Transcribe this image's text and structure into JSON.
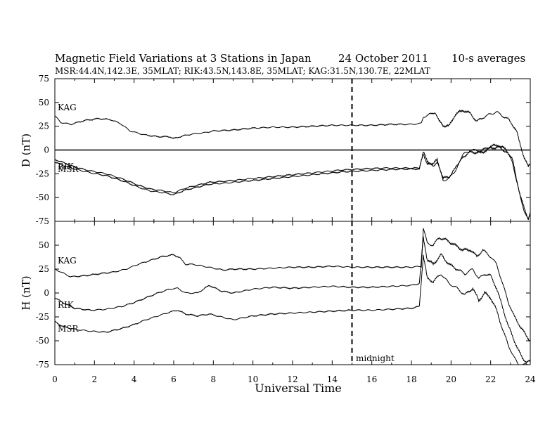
{
  "chart_data": {
    "type": "line",
    "title": "Magnetic Field Variations at 3 Stations in Japan",
    "date": "24 October 2011",
    "averaging": "10-s averages",
    "stations_line": "MSR:44.4N,142.3E, 35MLAT;   RIK:43.5N,143.8E, 35MLAT;   KAG:31.5N,130.7E, 22MLAT",
    "xlabel": "Universal Time",
    "xlim": [
      0,
      24
    ],
    "xticks": [
      0,
      2,
      4,
      6,
      8,
      10,
      12,
      14,
      16,
      18,
      20,
      22,
      24
    ],
    "annotation": {
      "x": 15,
      "label": "midnight",
      "style": "dashed vertical line"
    },
    "panels": [
      {
        "ylabel": "D (nT)",
        "ylim": [
          -75,
          75
        ],
        "yticks": [
          -75,
          -50,
          -25,
          0,
          25,
          50,
          75
        ],
        "zero_line": true,
        "series": [
          {
            "name": "KAG",
            "x": [
              0,
              0.3,
              0.8,
              1.5,
              2.2,
              2.8,
              3.3,
              3.8,
              4.5,
              5.2,
              5.8,
              6.0,
              6.5,
              7.0,
              7.5,
              8.0,
              9.0,
              10.0,
              11.0,
              12.0,
              13.0,
              14.0,
              15.0,
              16.0,
              17.0,
              18.0,
              18.5,
              18.6,
              18.9,
              19.2,
              19.4,
              19.6,
              19.9,
              20.2,
              20.6,
              21.0,
              21.3,
              21.6,
              22.0,
              22.3,
              22.6,
              22.9,
              23.1,
              23.3,
              23.5,
              23.7,
              23.9,
              24.0
            ],
            "y": [
              36,
              29,
              27,
              31,
              33,
              32,
              28,
              20,
              16,
              14,
              14,
              12,
              15,
              17,
              18,
              20,
              21,
              23,
              24,
              24,
              25,
              26,
              26,
              26,
              27,
              27,
              28,
              35,
              37,
              40,
              30,
              26,
              25,
              37,
              42,
              38,
              30,
              34,
              38,
              40,
              36,
              32,
              27,
              20,
              5,
              -8,
              -18,
              -14
            ]
          },
          {
            "name": "RIK",
            "x": [
              0,
              0.4,
              1.0,
              1.8,
              2.6,
              3.5,
              4.2,
              4.8,
              5.5,
              6.0,
              6.6,
              7.2,
              7.8,
              8.5,
              9.5,
              10.5,
              11.5,
              12.5,
              13.5,
              14.5,
              15.5,
              16.5,
              17.5,
              18.4,
              18.6,
              18.8,
              19.1,
              19.3,
              19.6,
              19.9,
              20.2,
              20.6,
              21.0,
              21.5,
              22.0,
              22.4,
              22.8,
              23.1,
              23.3,
              23.5,
              23.7,
              23.9,
              24.0
            ],
            "y": [
              -10,
              -13,
              -18,
              -22,
              -25,
              -31,
              -37,
              -41,
              -43,
              -45,
              -40,
              -37,
              -34,
              -33,
              -31,
              -29,
              -27,
              -25,
              -23,
              -21,
              -20,
              -19,
              -19,
              -19,
              -2,
              -12,
              -15,
              -10,
              -30,
              -28,
              -20,
              -5,
              0,
              -1,
              4,
              5,
              0,
              -10,
              -30,
              -48,
              -62,
              -72,
              -65
            ]
          },
          {
            "name": "MSR",
            "x": [
              0,
              0.4,
              1.0,
              1.8,
              2.6,
              3.5,
              4.2,
              4.8,
              5.5,
              6.0,
              6.6,
              7.2,
              7.8,
              8.5,
              9.5,
              10.5,
              11.5,
              12.5,
              13.5,
              14.5,
              15.5,
              16.5,
              17.5,
              18.4,
              18.6,
              18.8,
              19.1,
              19.3,
              19.6,
              19.9,
              20.2,
              20.6,
              21.0,
              21.5,
              22.0,
              22.4,
              22.8,
              23.1,
              23.3,
              23.5,
              23.7,
              23.9,
              24.0
            ],
            "y": [
              -13,
              -16,
              -20,
              -24,
              -27,
              -33,
              -39,
              -43,
              -45,
              -47,
              -42,
              -39,
              -36,
              -35,
              -33,
              -31,
              -29,
              -27,
              -25,
              -23,
              -22,
              -21,
              -20,
              -20,
              -4,
              -14,
              -17,
              -12,
              -32,
              -30,
              -22,
              -7,
              -2,
              -3,
              2,
              3,
              -2,
              -12,
              -32,
              -50,
              -64,
              -74,
              -67
            ]
          }
        ]
      },
      {
        "ylabel": "H (nT)",
        "ylim": [
          -75,
          75
        ],
        "yticks": [
          -75,
          -50,
          -25,
          0,
          25,
          50
        ],
        "zero_line": false,
        "series": [
          {
            "name": "KAG",
            "x": [
              0,
              0.3,
              0.8,
              1.5,
              2.2,
              3.0,
              3.6,
              4.2,
              4.8,
              5.4,
              6.0,
              6.3,
              6.6,
              7.0,
              7.5,
              8.0,
              8.5,
              9.0,
              10.0,
              11.0,
              12.0,
              13.0,
              14.0,
              15.0,
              16.0,
              17.0,
              18.0,
              18.5,
              18.6,
              18.8,
              19.1,
              19.4,
              19.8,
              20.2,
              20.6,
              21.0,
              21.3,
              21.6,
              22.0,
              22.3,
              22.6,
              22.9,
              23.2,
              23.5,
              23.8,
              24.0
            ],
            "y": [
              25,
              22,
              17,
              18,
              20,
              22,
              25,
              30,
              34,
              38,
              40,
              37,
              30,
              30,
              28,
              26,
              24,
              25,
              25,
              26,
              27,
              27,
              28,
              27,
              27,
              27,
              27,
              28,
              68,
              52,
              50,
              58,
              55,
              50,
              45,
              45,
              38,
              45,
              38,
              30,
              10,
              -10,
              -25,
              -35,
              -45,
              -50
            ]
          },
          {
            "name": "RIK",
            "x": [
              0,
              0.4,
              1.0,
              1.8,
              2.6,
              3.4,
              4.0,
              4.6,
              5.2,
              5.8,
              6.2,
              6.6,
              7.2,
              7.8,
              8.4,
              9.0,
              10.0,
              11.0,
              12.0,
              13.0,
              14.0,
              15.0,
              16.0,
              17.0,
              18.0,
              18.4,
              18.6,
              18.8,
              19.1,
              19.5,
              19.9,
              20.3,
              20.7,
              21.1,
              21.4,
              21.7,
              22.0,
              22.3,
              22.6,
              22.9,
              23.2,
              23.4,
              23.6,
              23.8,
              24.0
            ],
            "y": [
              -5,
              -10,
              -16,
              -18,
              -17,
              -14,
              -10,
              -5,
              0,
              4,
              5,
              0,
              0,
              8,
              2,
              0,
              4,
              6,
              5,
              6,
              7,
              6,
              6,
              7,
              8,
              10,
              58,
              35,
              30,
              40,
              30,
              25,
              20,
              25,
              15,
              20,
              18,
              5,
              -15,
              -35,
              -50,
              -60,
              -68,
              -72,
              -72
            ]
          },
          {
            "name": "MSR",
            "x": [
              0,
              0.4,
              1.0,
              1.8,
              2.6,
              3.4,
              4.0,
              4.6,
              5.2,
              5.8,
              6.2,
              6.6,
              7.2,
              7.8,
              8.4,
              9.0,
              10.0,
              11.0,
              12.0,
              13.0,
              14.0,
              15.0,
              16.0,
              17.0,
              18.0,
              18.4,
              18.6,
              18.8,
              19.1,
              19.5,
              19.9,
              20.3,
              20.7,
              21.1,
              21.4,
              21.7,
              22.0,
              22.3,
              22.6,
              22.9,
              23.2,
              23.4,
              23.6,
              23.8,
              24.0
            ],
            "y": [
              -30,
              -35,
              -38,
              -40,
              -41,
              -37,
              -33,
              -28,
              -24,
              -20,
              -18,
              -22,
              -24,
              -22,
              -25,
              -28,
              -24,
              -22,
              -21,
              -20,
              -19,
              -18,
              -18,
              -17,
              -16,
              -14,
              40,
              15,
              12,
              20,
              10,
              5,
              -2,
              5,
              -8,
              0,
              -5,
              -18,
              -38,
              -55,
              -68,
              -75,
              -75,
              -75,
              -75
            ]
          }
        ]
      }
    ]
  }
}
